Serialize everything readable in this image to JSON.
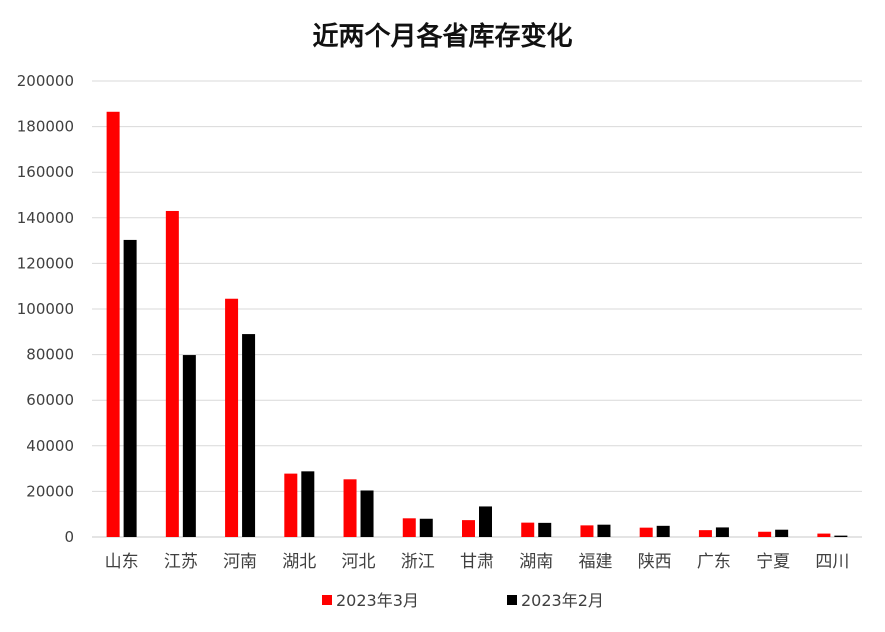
{
  "chart_data": {
    "type": "bar",
    "title": "近两个月各省库存变化",
    "xlabel": "",
    "ylabel": "",
    "categories": [
      "山东",
      "江苏",
      "河南",
      "湖北",
      "河北",
      "浙江",
      "甘肃",
      "湖南",
      "福建",
      "陕西",
      "广东",
      "宁夏",
      "四川"
    ],
    "series": [
      {
        "name": "2023年3月",
        "color": "#ff0000",
        "values": [
          186500,
          143000,
          104500,
          27800,
          25300,
          8200,
          7400,
          6300,
          5100,
          4100,
          3000,
          2300,
          1500
        ]
      },
      {
        "name": "2023年2月",
        "color": "#000000",
        "values": [
          130300,
          79800,
          89000,
          28800,
          20400,
          8000,
          13400,
          6200,
          5400,
          4900,
          4200,
          3200,
          600
        ]
      }
    ],
    "ylim": [
      0,
      200000
    ],
    "yticks": [
      0,
      20000,
      40000,
      60000,
      80000,
      100000,
      120000,
      140000,
      160000,
      180000,
      200000
    ],
    "grid": true,
    "legend_position": "bottom"
  }
}
